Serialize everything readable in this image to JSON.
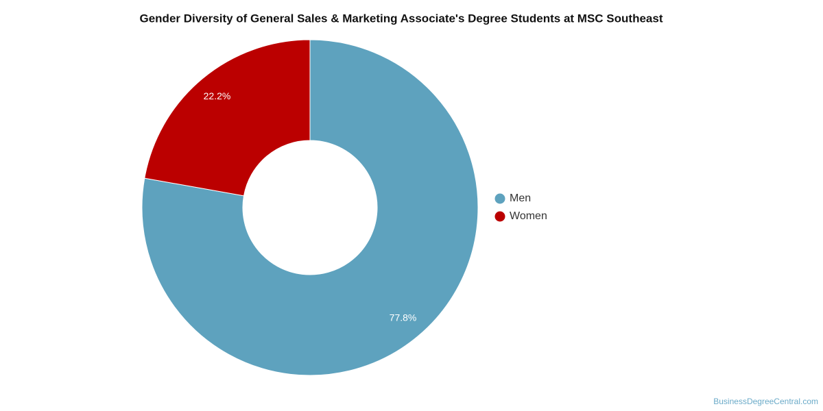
{
  "chart_data": {
    "type": "donut",
    "title": "Gender Diversity of General Sales & Marketing Associate's Degree Students at MSC Southeast",
    "categories": [
      "Men",
      "Women"
    ],
    "values": [
      77.8,
      22.2
    ],
    "value_labels": [
      "77.8%",
      "22.2%"
    ],
    "colors": [
      "#5ea2be",
      "#bb0000"
    ],
    "legend": "right",
    "credit": "BusinessDegreeCentral.com"
  }
}
